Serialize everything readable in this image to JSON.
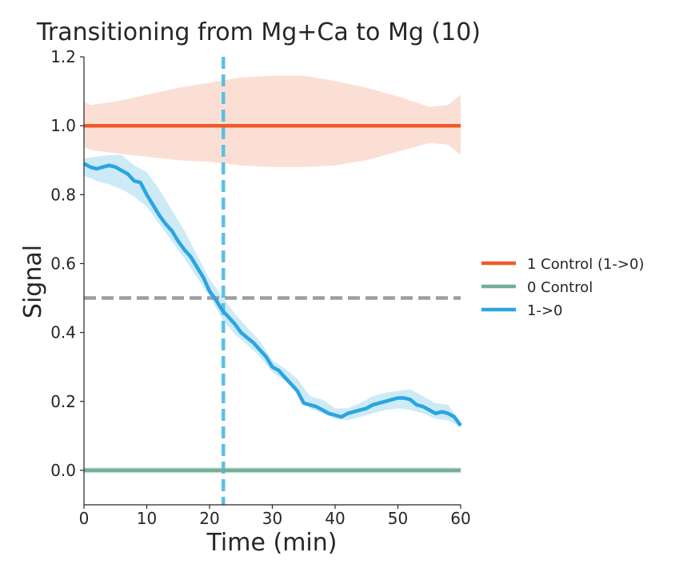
{
  "chart_data": {
    "type": "line",
    "title": "Transitioning from Mg+Ca to Mg (10)",
    "xlabel": "Time (min)",
    "ylabel": "Signal",
    "xlim": [
      0,
      60
    ],
    "ylim": [
      -0.1,
      1.2
    ],
    "xticks": [
      0,
      10,
      20,
      30,
      40,
      50,
      60
    ],
    "yticks": [
      0.0,
      0.2,
      0.4,
      0.6,
      0.8,
      1.0,
      1.2
    ],
    "xtick_labels": [
      "0",
      "10",
      "20",
      "30",
      "40",
      "50",
      "60"
    ],
    "ytick_labels": [
      "0.0",
      "0.2",
      "0.4",
      "0.6",
      "0.8",
      "1.0",
      "1.2"
    ],
    "grid": false,
    "legend_position": "right-center",
    "series": [
      {
        "name": "1 Control (1->0)",
        "color": "#f05a28",
        "band_color": "#fcd9cc",
        "x": [
          0,
          60
        ],
        "y": [
          1.0,
          1.0
        ],
        "band_x": [
          0,
          1,
          5,
          10,
          15,
          20,
          25,
          30,
          35,
          40,
          45,
          50,
          55,
          58,
          60
        ],
        "band_low": [
          0.94,
          0.93,
          0.92,
          0.91,
          0.9,
          0.895,
          0.885,
          0.88,
          0.88,
          0.885,
          0.9,
          0.925,
          0.95,
          0.945,
          0.915
        ],
        "band_high": [
          1.07,
          1.06,
          1.07,
          1.09,
          1.11,
          1.125,
          1.14,
          1.145,
          1.145,
          1.13,
          1.11,
          1.085,
          1.055,
          1.06,
          1.09
        ]
      },
      {
        "name": "0 Control",
        "color": "#72b096",
        "band_color": "#c5ded3",
        "x": [
          0,
          60
        ],
        "y": [
          0.0,
          0.0
        ],
        "band_x": [
          0,
          60
        ],
        "band_low": [
          -0.008,
          -0.008
        ],
        "band_high": [
          0.008,
          0.008
        ]
      },
      {
        "name": "1->0",
        "color": "#2aa5e0",
        "band_color": "#c4e6f6",
        "x": [
          0,
          1,
          2,
          3,
          4,
          5,
          6,
          7,
          8,
          9,
          10,
          11,
          12,
          13,
          14,
          15,
          16,
          17,
          18,
          19,
          20,
          21,
          22,
          23,
          24,
          25,
          26,
          27,
          28,
          29,
          30,
          31,
          32,
          33,
          34,
          35,
          36,
          37,
          38,
          39,
          40,
          41,
          42,
          43,
          44,
          45,
          46,
          47,
          48,
          49,
          50,
          51,
          52,
          53,
          54,
          55,
          56,
          57,
          58,
          59,
          60
        ],
        "y": [
          0.89,
          0.88,
          0.875,
          0.88,
          0.885,
          0.88,
          0.87,
          0.86,
          0.84,
          0.835,
          0.8,
          0.77,
          0.74,
          0.715,
          0.695,
          0.665,
          0.64,
          0.62,
          0.59,
          0.56,
          0.52,
          0.495,
          0.465,
          0.445,
          0.425,
          0.4,
          0.385,
          0.37,
          0.35,
          0.33,
          0.3,
          0.29,
          0.27,
          0.25,
          0.23,
          0.195,
          0.19,
          0.185,
          0.175,
          0.165,
          0.16,
          0.155,
          0.165,
          0.17,
          0.175,
          0.18,
          0.19,
          0.195,
          0.2,
          0.205,
          0.21,
          0.21,
          0.205,
          0.19,
          0.185,
          0.175,
          0.165,
          0.17,
          0.165,
          0.155,
          0.13
        ],
        "band_x": [
          0,
          2,
          4,
          6,
          8,
          10,
          12,
          14,
          16,
          18,
          20,
          22,
          24,
          26,
          28,
          30,
          32,
          34,
          36,
          38,
          40,
          42,
          44,
          46,
          48,
          50,
          52,
          54,
          56,
          58,
          60
        ],
        "band_low": [
          0.855,
          0.84,
          0.83,
          0.815,
          0.795,
          0.765,
          0.715,
          0.665,
          0.615,
          0.56,
          0.505,
          0.44,
          0.395,
          0.365,
          0.33,
          0.285,
          0.26,
          0.225,
          0.18,
          0.165,
          0.15,
          0.145,
          0.155,
          0.165,
          0.175,
          0.18,
          0.175,
          0.165,
          0.15,
          0.145,
          0.125
        ],
        "band_high": [
          0.905,
          0.91,
          0.915,
          0.915,
          0.885,
          0.865,
          0.815,
          0.755,
          0.695,
          0.625,
          0.555,
          0.505,
          0.455,
          0.415,
          0.375,
          0.32,
          0.295,
          0.265,
          0.215,
          0.205,
          0.18,
          0.18,
          0.195,
          0.215,
          0.225,
          0.23,
          0.235,
          0.215,
          0.195,
          0.19,
          0.14
        ]
      }
    ],
    "reference_lines": [
      {
        "orientation": "vertical",
        "value": 22.2,
        "color": "#5bc0e3",
        "style": "dashed"
      },
      {
        "orientation": "horizontal",
        "value": 0.5,
        "color": "#9e9e9e",
        "style": "dashed"
      }
    ]
  }
}
